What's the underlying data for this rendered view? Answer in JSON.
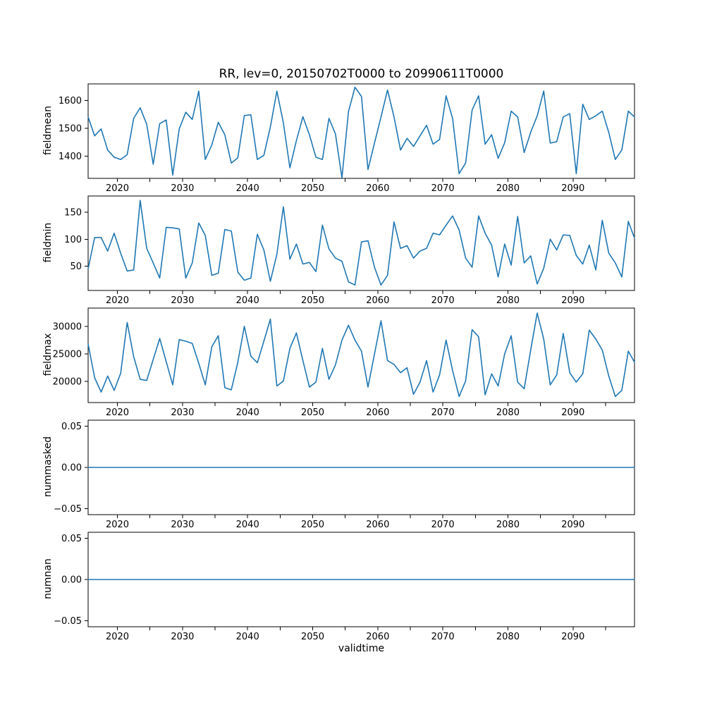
{
  "figure": {
    "title": "RR, lev=0, 20150702T0000 to 20990611T0000",
    "xlabel": "validtime",
    "line_color": "#1f77b4",
    "axis_color": "#000000",
    "background_color": "#ffffff"
  },
  "chart_data": {
    "type": "line",
    "title": "RR, lev=0, 20150702T0000 to 20990611T0000",
    "xlabel": "validtime",
    "grid": false,
    "legend": "none",
    "line_color": "#1f77b4",
    "xlim": [
      2015.5,
      2099.45
    ],
    "xticks_labeled": [
      2020,
      2030,
      2040,
      2050,
      2060,
      2070,
      2080,
      2090
    ],
    "xticks_unlabeled": [
      2025,
      2035,
      2045,
      2055,
      2065,
      2075,
      2085,
      2095
    ],
    "x": [
      2015.5,
      2016.5,
      2017.5,
      2018.5,
      2019.5,
      2020.5,
      2021.5,
      2022.5,
      2023.5,
      2024.5,
      2025.5,
      2026.5,
      2027.5,
      2028.5,
      2029.5,
      2030.5,
      2031.5,
      2032.5,
      2033.5,
      2034.5,
      2035.5,
      2036.5,
      2037.5,
      2038.5,
      2039.5,
      2040.5,
      2041.5,
      2042.5,
      2043.5,
      2044.5,
      2045.5,
      2046.5,
      2047.5,
      2048.5,
      2049.5,
      2050.5,
      2051.5,
      2052.5,
      2053.5,
      2054.5,
      2055.5,
      2056.5,
      2057.5,
      2058.5,
      2059.5,
      2060.5,
      2061.5,
      2062.5,
      2063.5,
      2064.5,
      2065.5,
      2066.5,
      2067.5,
      2068.5,
      2069.5,
      2070.5,
      2071.5,
      2072.5,
      2073.5,
      2074.5,
      2075.5,
      2076.5,
      2077.5,
      2078.5,
      2079.5,
      2080.5,
      2081.5,
      2082.5,
      2083.5,
      2084.5,
      2085.5,
      2086.5,
      2087.5,
      2088.5,
      2089.5,
      2090.5,
      2091.5,
      2092.5,
      2093.5,
      2094.5,
      2095.5,
      2096.5,
      2097.5,
      2098.5,
      2099.45
    ],
    "subplots": [
      {
        "ylabel": "fieldmean",
        "yticks": [
          1400,
          1500,
          1600
        ],
        "ytick_labels": [
          "1400",
          "1500",
          "1600"
        ],
        "ylim": [
          1320,
          1660
        ],
        "values": [
          1541,
          1473,
          1498,
          1422,
          1396,
          1388,
          1405,
          1536,
          1574,
          1515,
          1371,
          1517,
          1530,
          1332,
          1498,
          1558,
          1532,
          1634,
          1388,
          1440,
          1522,
          1477,
          1375,
          1394,
          1546,
          1549,
          1388,
          1403,
          1505,
          1634,
          1520,
          1358,
          1456,
          1542,
          1477,
          1396,
          1388,
          1536,
          1480,
          1322,
          1560,
          1648,
          1615,
          1352,
          1447,
          1541,
          1638,
          1541,
          1422,
          1464,
          1435,
          1473,
          1511,
          1443,
          1460,
          1617,
          1536,
          1337,
          1375,
          1566,
          1617,
          1443,
          1477,
          1392,
          1448,
          1562,
          1541,
          1413,
          1486,
          1545,
          1634,
          1447,
          1452,
          1541,
          1553,
          1337,
          1587,
          1532,
          1545,
          1562,
          1485,
          1388,
          1422,
          1562,
          1541
        ]
      },
      {
        "ylabel": "fieldmin",
        "yticks": [
          50,
          100,
          150
        ],
        "ytick_labels": [
          "50",
          "100",
          "150"
        ],
        "ylim": [
          5,
          180
        ],
        "values": [
          45,
          103,
          103,
          78,
          111,
          74,
          41,
          43,
          172,
          83,
          56,
          28,
          122,
          121,
          119,
          28,
          56,
          130,
          107,
          33,
          37,
          118,
          115,
          39,
          24,
          28,
          109,
          80,
          22,
          72,
          160,
          63,
          91,
          54,
          57,
          40,
          126,
          82,
          65,
          59,
          21,
          15,
          95,
          97,
          48,
          15,
          33,
          132,
          83,
          88,
          65,
          78,
          83,
          111,
          108,
          126,
          143,
          117,
          65,
          48,
          143,
          111,
          89,
          30,
          91,
          52,
          142,
          56,
          69,
          17,
          46,
          100,
          80,
          108,
          107,
          70,
          54,
          89,
          43,
          135,
          74,
          56,
          30,
          133,
          102
        ]
      },
      {
        "ylabel": "fieldmax",
        "yticks": [
          20000,
          25000,
          30000
        ],
        "ytick_labels": [
          "20000",
          "25000",
          "30000"
        ],
        "ylim": [
          16200,
          33300
        ],
        "values": [
          26800,
          20700,
          18100,
          21000,
          18400,
          21500,
          30700,
          24500,
          20400,
          20200,
          24000,
          27800,
          23600,
          19400,
          27600,
          27300,
          26900,
          23300,
          19400,
          26300,
          28300,
          18900,
          18500,
          23500,
          30000,
          24600,
          23400,
          27300,
          31300,
          19200,
          20100,
          26000,
          28800,
          23800,
          19000,
          19900,
          26000,
          20400,
          23000,
          27500,
          30200,
          27500,
          25500,
          19000,
          25000,
          31000,
          23800,
          23100,
          21600,
          22500,
          17700,
          19900,
          23800,
          18100,
          21200,
          27500,
          22000,
          17300,
          20100,
          29400,
          28100,
          17600,
          21400,
          19200,
          25000,
          28300,
          19900,
          18700,
          25700,
          32400,
          27700,
          19400,
          21200,
          28700,
          21600,
          19900,
          21400,
          29300,
          27700,
          25700,
          21000,
          17300,
          18400,
          25500,
          23500
        ]
      },
      {
        "ylabel": "nummasked",
        "yticks": [
          -0.05,
          0.0,
          0.05
        ],
        "ytick_labels": [
          "−0.05",
          "0.00",
          "0.05"
        ],
        "ylim": [
          -0.0575,
          0.0575
        ],
        "constant": 0
      },
      {
        "ylabel": "numnan",
        "yticks": [
          -0.05,
          0.0,
          0.05
        ],
        "ytick_labels": [
          "−0.05",
          "0.00",
          "0.05"
        ],
        "ylim": [
          -0.0575,
          0.0575
        ],
        "constant": 0
      }
    ]
  }
}
